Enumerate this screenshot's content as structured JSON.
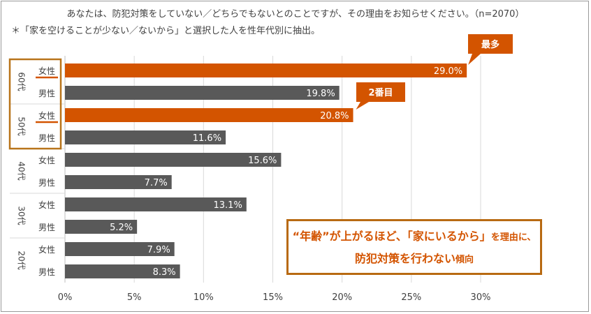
{
  "chart_data": {
    "type": "bar",
    "orientation": "horizontal",
    "title": "あなたは、防犯対策をしていない／どちらでもないとのことですが、その理由をお知らせください。（n=2070）",
    "subtitle": "＊「家を空けることが少ない／ないから」と選択した人を性年代別に抽出。",
    "groups": [
      "60代",
      "50代",
      "40代",
      "30代",
      "20代"
    ],
    "categories": [
      {
        "group": "60代",
        "label": "女性"
      },
      {
        "group": "60代",
        "label": "男性"
      },
      {
        "group": "50代",
        "label": "女性"
      },
      {
        "group": "50代",
        "label": "男性"
      },
      {
        "group": "40代",
        "label": "女性"
      },
      {
        "group": "40代",
        "label": "男性"
      },
      {
        "group": "30代",
        "label": "女性"
      },
      {
        "group": "30代",
        "label": "男性"
      },
      {
        "group": "20代",
        "label": "女性"
      },
      {
        "group": "20代",
        "label": "男性"
      }
    ],
    "values": [
      29.0,
      19.8,
      20.8,
      11.6,
      15.6,
      7.7,
      13.1,
      5.2,
      7.9,
      8.3
    ],
    "data_labels": [
      "29.0%",
      "19.8%",
      "20.8%",
      "11.6%",
      "15.6%",
      "7.7%",
      "13.1%",
      "5.2%",
      "7.9%",
      "8.3%"
    ],
    "highlighted": [
      true,
      false,
      true,
      false,
      false,
      false,
      false,
      false,
      false,
      false
    ],
    "xlim": [
      0,
      30
    ],
    "xticks": [
      0,
      5,
      10,
      15,
      20,
      25,
      30
    ],
    "xtick_labels": [
      "0%",
      "5%",
      "10%",
      "15%",
      "20%",
      "25%",
      "30%"
    ],
    "gridlines": true,
    "annotations": [
      {
        "text": "最多",
        "target_index": 0
      },
      {
        "text": "2番目",
        "target_index": 2
      }
    ],
    "callout": {
      "line1_parts": [
        "“年齢”が上がるほど、",
        "「家にいるから」",
        "を理由に、"
      ],
      "line2_parts": [
        "防犯対策を行わない",
        "傾向"
      ]
    }
  },
  "colors": {
    "highlight": "#d35400",
    "bar": "#595959",
    "grid": "#d9d9d9",
    "text": "#404040",
    "frame": "#b8741a"
  }
}
